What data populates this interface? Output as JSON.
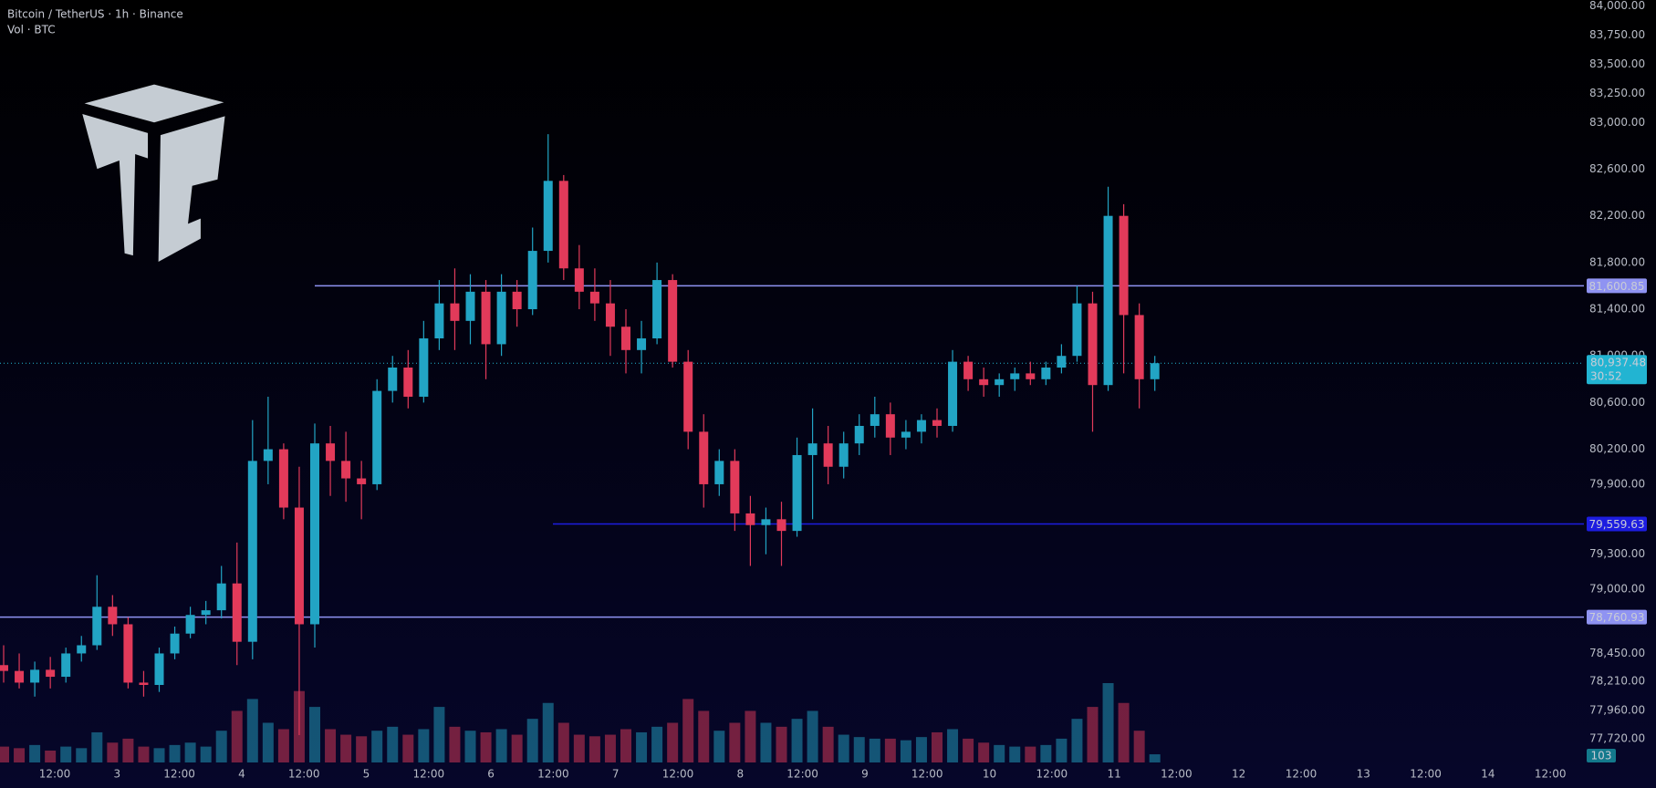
{
  "chart_data": {
    "type": "candlestick",
    "title": "Bitcoin / TetherUS · 1h · Binance",
    "subtitle": "Vol · BTC",
    "up_color": "#22a4c4",
    "down_color": "#e23a5a",
    "ylim": [
      77500,
      84050
    ],
    "yticks": [
      {
        "value": 84000,
        "label": "84,000.00"
      },
      {
        "value": 83750,
        "label": "83,750.00"
      },
      {
        "value": 83500,
        "label": "83,500.00"
      },
      {
        "value": 83250,
        "label": "83,250.00"
      },
      {
        "value": 83000,
        "label": "83,000.00"
      },
      {
        "value": 82600,
        "label": "82,600.00"
      },
      {
        "value": 82200,
        "label": "82,200.00"
      },
      {
        "value": 81800,
        "label": "81,800.00"
      },
      {
        "value": 81400,
        "label": "81,400.00"
      },
      {
        "value": 81000,
        "label": "81,000.00"
      },
      {
        "value": 80600,
        "label": "80,600.00"
      },
      {
        "value": 80200,
        "label": "80,200.00"
      },
      {
        "value": 79900,
        "label": "79,900.00"
      },
      {
        "value": 79300,
        "label": "79,300.00"
      },
      {
        "value": 79000,
        "label": "79,000.00"
      },
      {
        "value": 78450,
        "label": "78,450.00"
      },
      {
        "value": 78210,
        "label": "78,210.00"
      },
      {
        "value": 77960,
        "label": "77,960.00"
      },
      {
        "value": 77720,
        "label": "77,720.00"
      }
    ],
    "xticks": [
      "12:00",
      "3",
      "12:00",
      "4",
      "12:00",
      "5",
      "12:00",
      "6",
      "12:00",
      "7",
      "12:00",
      "8",
      "12:00",
      "9",
      "12:00",
      "10",
      "12:00",
      "11",
      "12:00",
      "12",
      "12:00",
      "13",
      "12:00",
      "14",
      "12:00"
    ],
    "open": [
      78350,
      78300,
      78200,
      78310,
      78250,
      78450,
      78520,
      78850,
      78700,
      78200,
      78180,
      78450,
      78620,
      78780,
      78820,
      79050,
      78550,
      80100,
      80200,
      79700,
      78700,
      80250,
      80100,
      79950,
      79900,
      80700,
      80900,
      80650,
      81150,
      81450,
      81300,
      81550,
      81100,
      81550,
      81400,
      81900,
      82500,
      81750,
      81550,
      81450,
      81250,
      81050,
      81150,
      81650,
      80950,
      80350,
      79900,
      80100,
      79650,
      79550,
      79600,
      79500,
      80150,
      80250,
      80050,
      80250,
      80400,
      80500,
      80300,
      80350,
      80450,
      80400,
      80950,
      80800,
      80750,
      80800,
      80850,
      80800,
      80900,
      81000,
      81450,
      80750,
      82200,
      81350,
      80800
    ],
    "high": [
      78520,
      78450,
      78380,
      78420,
      78500,
      78600,
      79120,
      78950,
      78760,
      78300,
      78500,
      78680,
      78850,
      78900,
      79200,
      79400,
      80450,
      80650,
      80250,
      80050,
      80420,
      80400,
      80350,
      80100,
      80800,
      81000,
      81050,
      81300,
      81650,
      81750,
      81700,
      81650,
      81700,
      81650,
      82100,
      82900,
      82550,
      81950,
      81750,
      81650,
      81400,
      81300,
      81800,
      81700,
      81050,
      80500,
      80200,
      80200,
      79800,
      79700,
      79750,
      80300,
      80550,
      80400,
      80350,
      80500,
      80650,
      80600,
      80450,
      80500,
      80550,
      81050,
      81000,
      80900,
      80850,
      80900,
      80950,
      80950,
      81100,
      81600,
      81550,
      82450,
      82300,
      81450,
      81000
    ],
    "low": [
      78200,
      78150,
      78080,
      78150,
      78200,
      78380,
      78480,
      78600,
      78150,
      78080,
      78120,
      78400,
      78580,
      78700,
      78750,
      78350,
      78400,
      79900,
      79600,
      77750,
      78500,
      79800,
      79750,
      79600,
      79850,
      80600,
      80550,
      80600,
      81050,
      81050,
      81100,
      80800,
      81000,
      81250,
      81350,
      81800,
      81650,
      81400,
      81300,
      81000,
      80850,
      80850,
      81100,
      80900,
      80200,
      79700,
      79800,
      79500,
      79200,
      79300,
      79200,
      79450,
      79600,
      79900,
      79950,
      80150,
      80300,
      80150,
      80200,
      80250,
      80300,
      80350,
      80700,
      80650,
      80650,
      80700,
      80750,
      80750,
      80850,
      80950,
      80350,
      80700,
      80850,
      80550,
      80700
    ],
    "close": [
      78300,
      78200,
      78310,
      78250,
      78450,
      78520,
      78850,
      78700,
      78200,
      78180,
      78450,
      78620,
      78780,
      78820,
      79050,
      78550,
      80100,
      80200,
      79700,
      78700,
      80250,
      80100,
      79950,
      79900,
      80700,
      80900,
      80650,
      81150,
      81450,
      81300,
      81550,
      81100,
      81550,
      81400,
      81900,
      82500,
      81750,
      81550,
      81450,
      81250,
      81050,
      81150,
      81650,
      80950,
      80350,
      79900,
      80100,
      79650,
      79550,
      79600,
      79500,
      80150,
      80250,
      80050,
      80250,
      80400,
      80500,
      80300,
      80350,
      80450,
      80400,
      80950,
      80800,
      80750,
      80800,
      80850,
      80800,
      80900,
      81000,
      81450,
      80750,
      82200,
      81350,
      80800,
      80937.48
    ],
    "volume": [
      200,
      180,
      220,
      150,
      200,
      180,
      380,
      250,
      300,
      200,
      180,
      220,
      250,
      200,
      400,
      650,
      800,
      500,
      420,
      900,
      700,
      420,
      350,
      330,
      400,
      450,
      350,
      420,
      700,
      450,
      400,
      380,
      420,
      350,
      550,
      750,
      500,
      350,
      330,
      350,
      420,
      380,
      450,
      500,
      800,
      650,
      400,
      500,
      650,
      500,
      450,
      550,
      650,
      450,
      350,
      320,
      300,
      300,
      280,
      320,
      380,
      420,
      300,
      250,
      220,
      200,
      200,
      220,
      300,
      550,
      700,
      1000,
      750,
      400,
      103
    ],
    "levels": [
      {
        "value": 81600.85,
        "label": "81,600.85",
        "color": "#8f93f2"
      },
      {
        "value": 79559.63,
        "label": "79,559.63",
        "color": "#1d1de0"
      },
      {
        "value": 78760.93,
        "label": "78,760.93",
        "color": "#8f93f2"
      }
    ],
    "last_price": {
      "value": 80937.48,
      "label": "80,937.48",
      "countdown": "30:52",
      "color": "#22b4d2"
    }
  }
}
